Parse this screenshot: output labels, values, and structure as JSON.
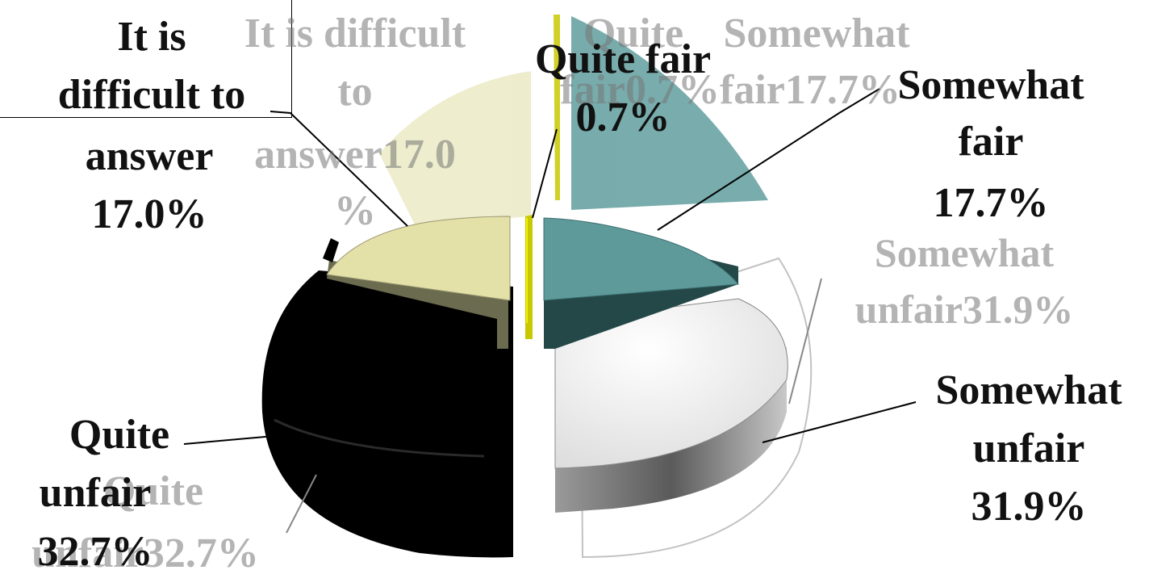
{
  "chart_data": {
    "type": "pie",
    "style": "3d-exploded",
    "slices": [
      {
        "label": "Somewhat fair",
        "value": 17.7,
        "color": "#5f9a9a"
      },
      {
        "label": "Somewhat unfair",
        "value": 31.9,
        "color": "#f7f7f7"
      },
      {
        "label": "Quite unfair",
        "value": 32.7,
        "color": "#050505"
      },
      {
        "label": "It is difficult to answer",
        "value": 17.0,
        "color": "#e3e0a8"
      },
      {
        "label": "Quite fair",
        "value": 0.7,
        "color": "#d4d400"
      }
    ],
    "data_labels": [
      {
        "lines": [
          "Somewhat",
          "fair",
          "17.7%"
        ]
      },
      {
        "lines": [
          "Somewhat",
          "unfair",
          "31.9%"
        ]
      },
      {
        "lines": [
          "Quite",
          "unfair",
          "32.7%"
        ]
      },
      {
        "lines": [
          "It is",
          "difficult to",
          "answer",
          "17.0%"
        ]
      },
      {
        "lines": [
          "Quite fair",
          "0.7%"
        ]
      }
    ],
    "ghost_labels": [
      {
        "lines": [
          "Somewhat",
          "unfair31.9%"
        ]
      },
      {
        "lines": [
          "It is difficult",
          "to",
          "answer17.0",
          "%"
        ]
      },
      {
        "lines": [
          "Quite",
          "Somewhat"
        ]
      },
      {
        "lines": [
          "fair0.7%fair17.7%"
        ]
      },
      {
        "lines": [
          "Quite",
          "unfair32.7%"
        ]
      }
    ],
    "legend": "none"
  }
}
